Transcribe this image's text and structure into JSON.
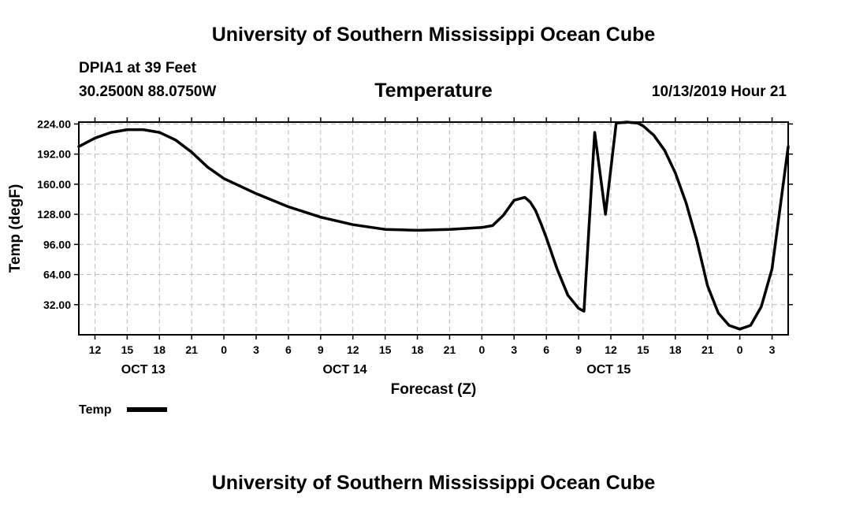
{
  "header": {
    "main_title": "University of Southern Mississippi Ocean Cube",
    "station": "DPIA1 at 39 Feet",
    "coords": "30.2500N 88.0750W",
    "datetime": "10/13/2019 Hour 21",
    "footer_title": "University of Southern Mississippi Ocean Cube"
  },
  "chart_data": {
    "type": "line",
    "title": "Temperature",
    "xlabel": "Forecast (Z)",
    "ylabel": "Temp (degF)",
    "ylim": [
      0,
      226
    ],
    "xlim": [
      10.5,
      76.5
    ],
    "x_unit": "hours since 2019-10-13 00Z",
    "y_ticks": [
      32,
      64,
      96,
      128,
      160,
      192,
      224
    ],
    "y_tick_labels": [
      "32.00",
      "64.00",
      "96.00",
      "128.00",
      "160.00",
      "192.00",
      "224.00"
    ],
    "x_ticks": [
      12,
      15,
      18,
      21,
      24,
      27,
      30,
      33,
      36,
      39,
      42,
      45,
      48,
      51,
      54,
      57,
      60,
      63,
      66,
      69,
      72,
      75
    ],
    "x_tick_labels": [
      "12",
      "15",
      "18",
      "21",
      "0",
      "3",
      "6",
      "9",
      "12",
      "15",
      "18",
      "21",
      "0",
      "3",
      "6",
      "9",
      "12",
      "15",
      "18",
      "21",
      "0",
      "3"
    ],
    "date_labels": [
      {
        "x": 16.5,
        "label": "OCT 13"
      },
      {
        "x": 35.25,
        "label": "OCT 14"
      },
      {
        "x": 59.8,
        "label": "OCT 15"
      }
    ],
    "grid": true,
    "legend": {
      "placement": "bottom-left",
      "entries": [
        "Temp"
      ]
    },
    "series": [
      {
        "name": "Temp",
        "x": [
          10.5,
          12,
          13.5,
          15,
          16.5,
          18,
          19.5,
          21,
          22.5,
          24,
          27,
          30,
          33,
          36,
          39,
          42,
          45,
          48,
          49,
          50,
          51,
          52,
          52.5,
          53,
          53.5,
          54,
          55,
          56,
          57,
          57.5,
          58.5,
          59.5,
          60.5,
          61.5,
          62.5,
          63,
          64,
          65,
          66,
          67,
          68,
          69,
          70,
          71,
          72,
          73,
          74,
          75,
          76.5
        ],
        "values": [
          200,
          209,
          215,
          218,
          218,
          215,
          207,
          194,
          178,
          166,
          150,
          136,
          125,
          117,
          112,
          111,
          112,
          114,
          116,
          127,
          143,
          146,
          141,
          132,
          118,
          103,
          70,
          42,
          28,
          25,
          215,
          128,
          225,
          226,
          225,
          222,
          212,
          196,
          172,
          140,
          100,
          52,
          23,
          10,
          6,
          10,
          30,
          70,
          200
        ]
      }
    ]
  }
}
